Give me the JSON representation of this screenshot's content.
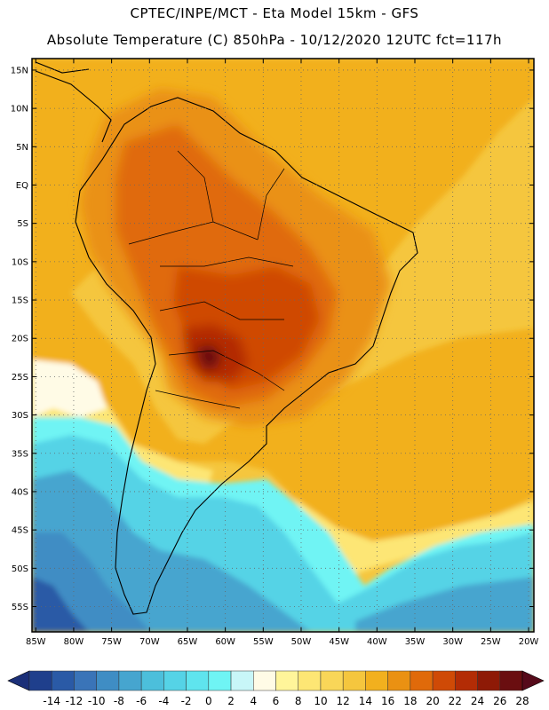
{
  "header": {
    "line1": "CPTEC/INPE/MCT  -   Eta Model 15km  -  GFS",
    "line2": "Absolute Temperature (C) 850hPa - 10/12/2020 12UTC fct=117h"
  },
  "map": {
    "variable": "Absolute Temperature (C) 850hPa",
    "lat_labels": [
      "15N",
      "10N",
      "5N",
      "EQ",
      "5S",
      "10S",
      "15S",
      "20S",
      "25S",
      "30S",
      "35S",
      "40S",
      "45S",
      "50S",
      "55S"
    ],
    "lat_values": [
      15,
      10,
      5,
      0,
      -5,
      -10,
      -15,
      -20,
      -25,
      -30,
      -35,
      -40,
      -45,
      -50,
      -55
    ],
    "lon_labels": [
      "85W",
      "80W",
      "75W",
      "70W",
      "65W",
      "60W",
      "55W",
      "50W",
      "45W",
      "40W",
      "35W",
      "30W",
      "25W",
      "20W"
    ],
    "lon_values": [
      -85,
      -80,
      -75,
      -70,
      -65,
      -60,
      -55,
      -50,
      -45,
      -40,
      -35,
      -30,
      -25,
      -20
    ],
    "lon_range": [
      -85.5,
      -19.3
    ],
    "lat_range": [
      -58.3,
      16.5
    ]
  },
  "colorbar": {
    "labels": [
      "-14",
      "-12",
      "-10",
      "-8",
      "-6",
      "-4",
      "-2",
      "0",
      "2",
      "4",
      "6",
      "8",
      "10",
      "12",
      "14",
      "16",
      "18",
      "20",
      "22",
      "24",
      "26",
      "28"
    ],
    "values": [
      -14,
      -12,
      -10,
      -8,
      -6,
      -4,
      -2,
      0,
      2,
      4,
      6,
      8,
      10,
      12,
      14,
      16,
      18,
      20,
      22,
      24,
      26,
      28
    ],
    "colors": [
      "#1f3f8c",
      "#2a5aa6",
      "#3a74b8",
      "#3f8dc4",
      "#46a5cf",
      "#4cbfdb",
      "#55d3e6",
      "#5fe4ee",
      "#6ff4f4",
      "#c8f6f8",
      "#fffbe6",
      "#fff59a",
      "#fde674",
      "#f9d658",
      "#f5c63e",
      "#f2b01e",
      "#ea9112",
      "#e06a0a",
      "#cf4a06",
      "#b32c05",
      "#8e1a06",
      "#6a0e10"
    ],
    "low_color": "#1b2f78",
    "high_color": "#560a1a"
  }
}
